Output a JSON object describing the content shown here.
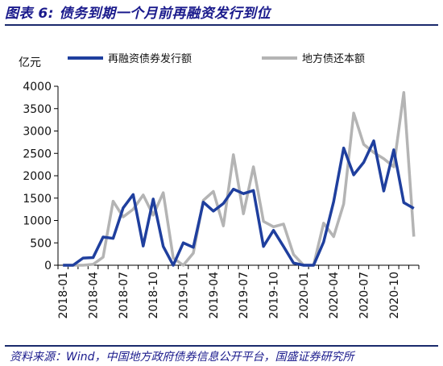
{
  "header": {
    "figure_label": "图表 6:",
    "title": "债务到期一个月前再融资发行到位"
  },
  "footer": {
    "source": "资料来源：Wind，中国地方政府债券信息公开平台，国盛证券研究所"
  },
  "colors": {
    "series_1": "#1f3f9e",
    "series_2": "#b4b4b4",
    "rule": "#1a2a6c",
    "title": "#1a1a8c"
  },
  "chart_data": {
    "type": "line",
    "ylabel": "亿元",
    "ylim": [
      0,
      4000
    ],
    "yticks": [
      0,
      500,
      1000,
      1500,
      2000,
      2500,
      3000,
      3500,
      4000
    ],
    "x_tick_labels": [
      "2018-01",
      "2018-04",
      "2018-07",
      "2018-10",
      "2019-01",
      "2019-04",
      "2019-07",
      "2019-10",
      "2020-01",
      "2020-04",
      "2020-07",
      "2020-10"
    ],
    "grid": false,
    "legend_position": "top",
    "x": [
      "2018-01",
      "2018-02",
      "2018-03",
      "2018-04",
      "2018-05",
      "2018-06",
      "2018-07",
      "2018-08",
      "2018-09",
      "2018-10",
      "2018-11",
      "2018-12",
      "2019-01",
      "2019-02",
      "2019-03",
      "2019-04",
      "2019-05",
      "2019-06",
      "2019-07",
      "2019-08",
      "2019-09",
      "2019-10",
      "2019-11",
      "2019-12",
      "2020-01",
      "2020-02",
      "2020-03",
      "2020-04",
      "2020-05",
      "2020-06",
      "2020-07",
      "2020-08",
      "2020-09",
      "2020-10",
      "2020-11",
      "2020-12"
    ],
    "series": [
      {
        "name": "再融资债券发行额",
        "values": [
          0,
          0,
          160,
          170,
          630,
          600,
          1280,
          1580,
          430,
          1480,
          420,
          0,
          500,
          400,
          1410,
          1210,
          1380,
          1700,
          1600,
          1670,
          420,
          780,
          420,
          50,
          0,
          0,
          520,
          1420,
          2620,
          2020,
          2300,
          2780,
          1660,
          2580,
          1400,
          1270
        ]
      },
      {
        "name": "地方债还本额",
        "values": [
          0,
          0,
          0,
          20,
          180,
          1430,
          1080,
          1250,
          1570,
          1120,
          1620,
          160,
          0,
          270,
          1450,
          1650,
          880,
          2470,
          1150,
          2200,
          980,
          860,
          920,
          240,
          0,
          0,
          940,
          640,
          1370,
          3400,
          2700,
          2520,
          2380,
          2200,
          3860,
          640
        ]
      }
    ]
  }
}
